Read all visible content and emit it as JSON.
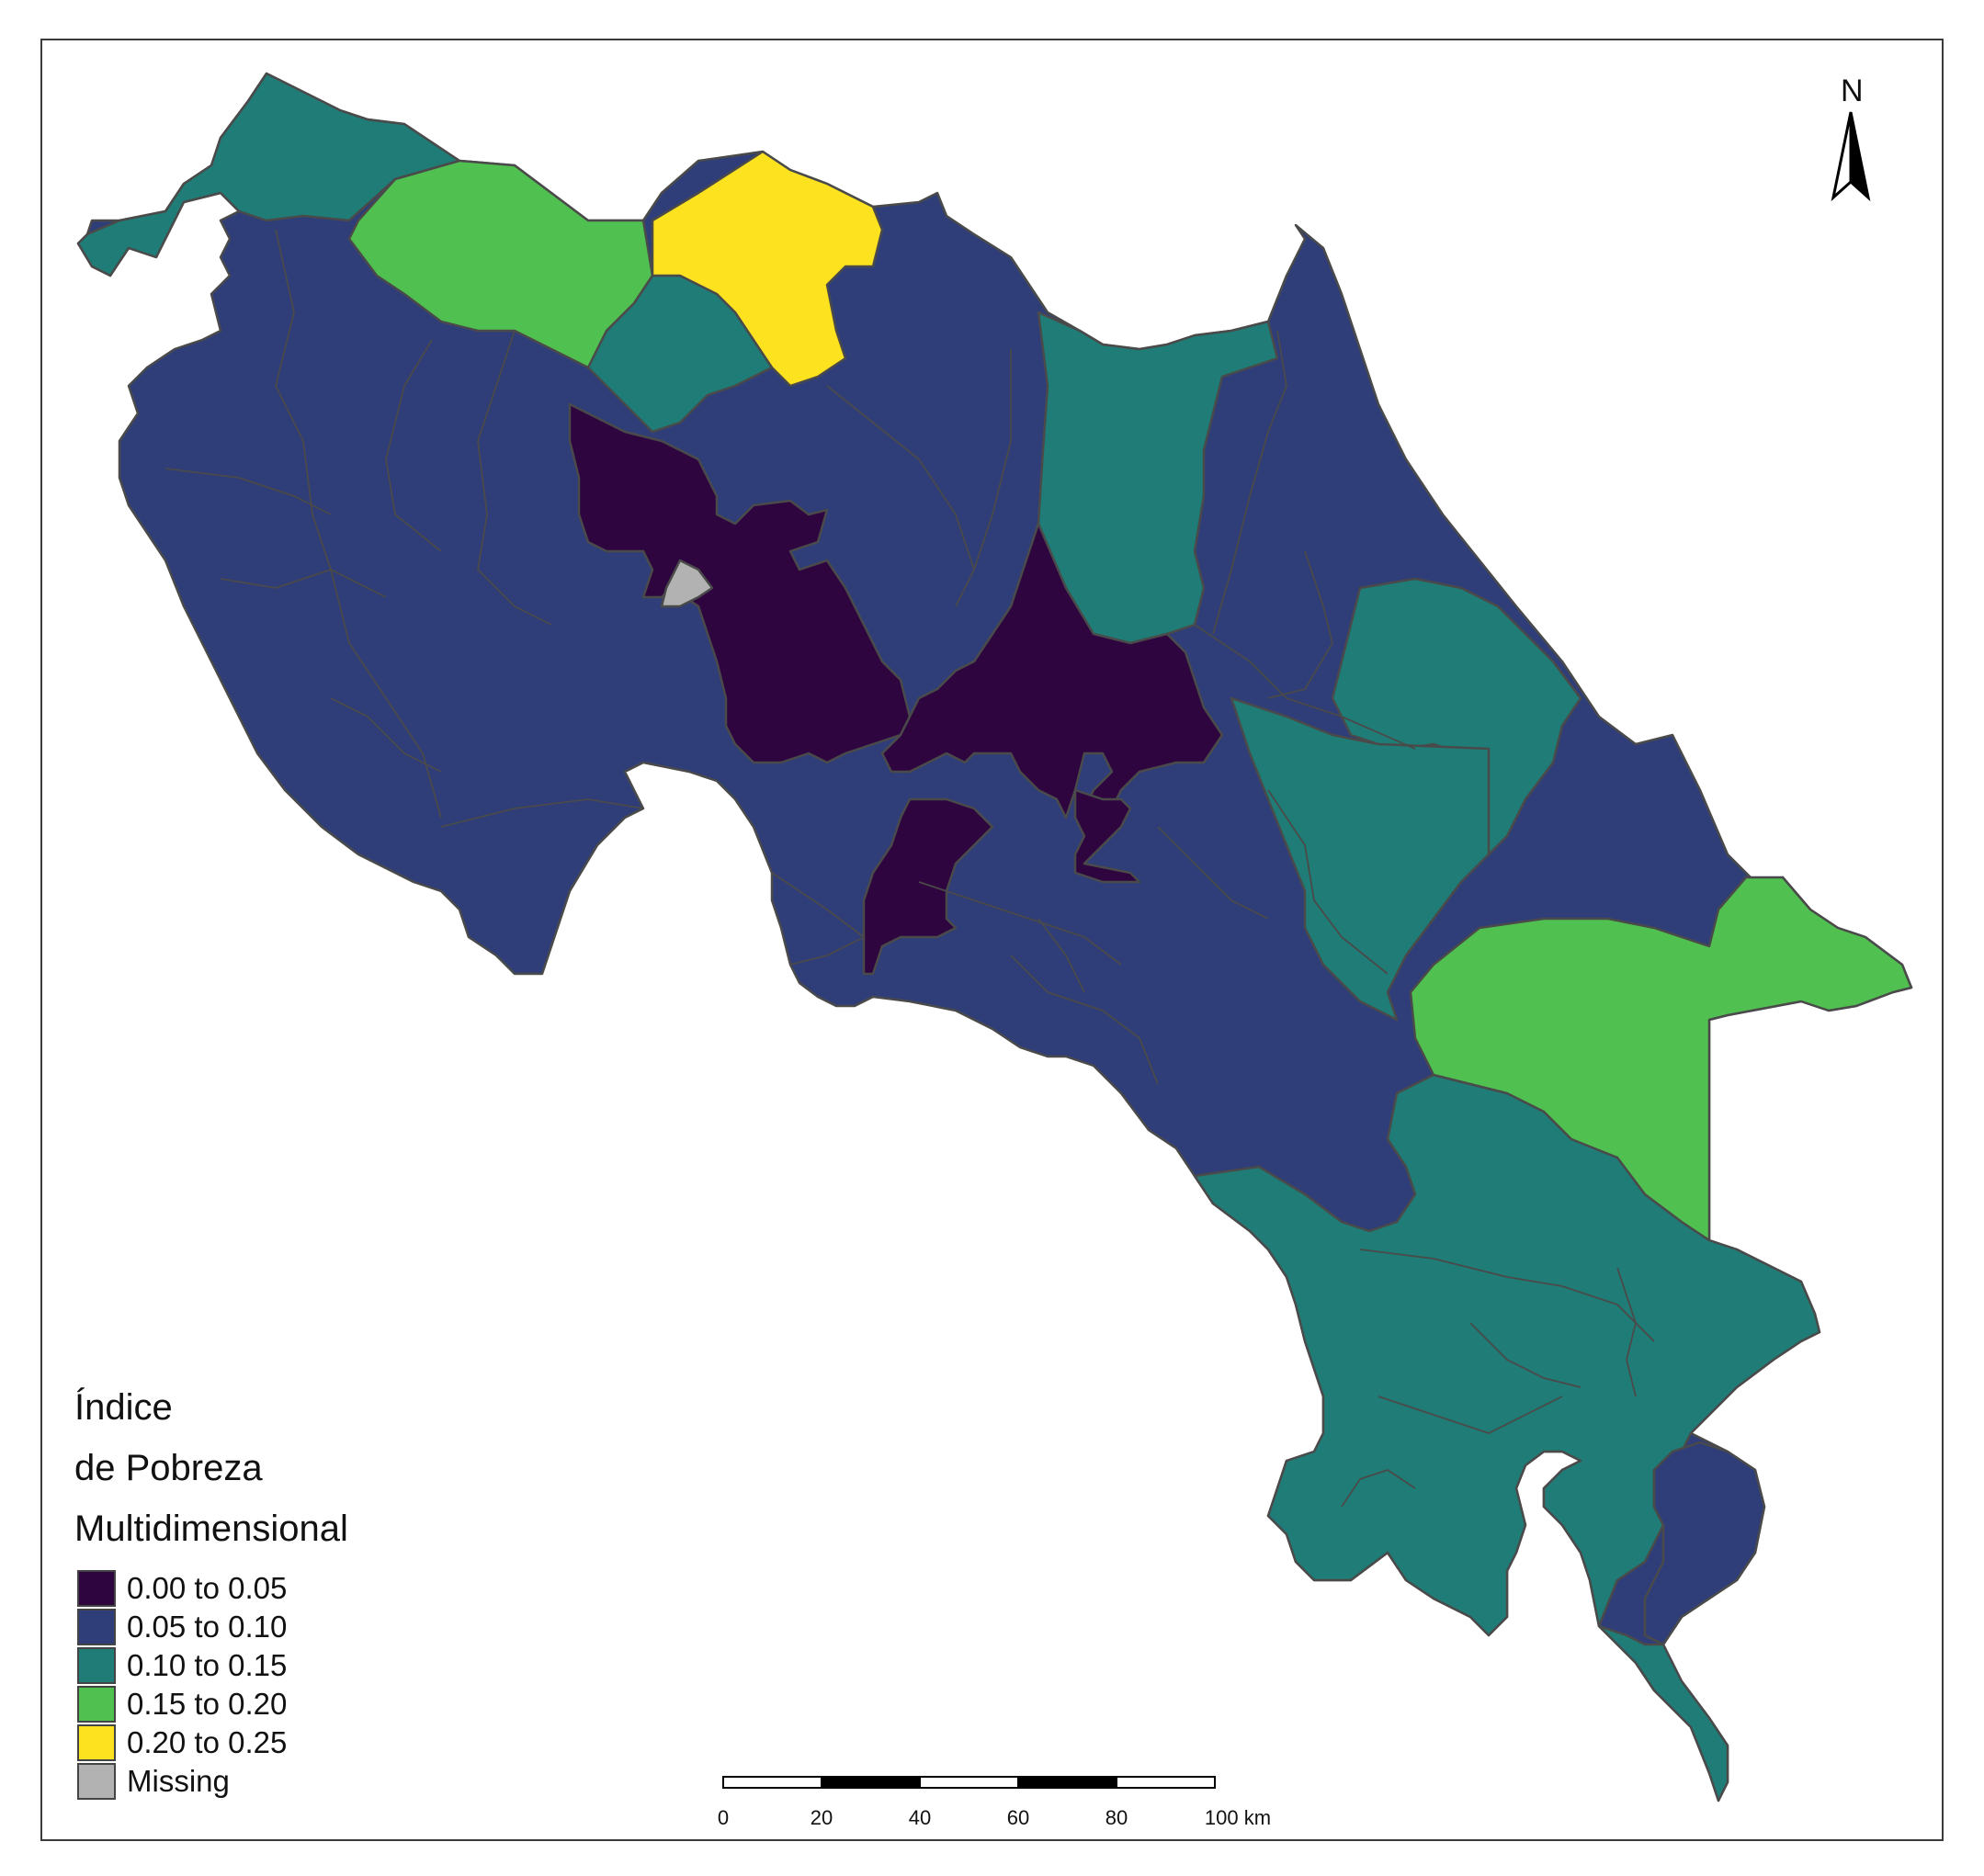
{
  "legend": {
    "title_line1": "Índice",
    "title_line2": "de Pobreza",
    "title_line3": "Multidimensional",
    "items": [
      {
        "label": "0.00 to 0.05",
        "color": "#2f0540"
      },
      {
        "label": "0.05 to 0.10",
        "color": "#2f3e78"
      },
      {
        "label": "0.10 to 0.15",
        "color": "#1f7c76"
      },
      {
        "label": "0.15 to 0.20",
        "color": "#50c050"
      },
      {
        "label": "0.20 to 0.25",
        "color": "#fde31f"
      },
      {
        "label": "Missing",
        "color": "#b2b2b2"
      }
    ]
  },
  "north_arrow": {
    "label": "N"
  },
  "scale_bar": {
    "ticks": [
      "0",
      "20",
      "40",
      "60",
      "80",
      "100 km"
    ]
  },
  "colors": {
    "border": "#4a4a4a",
    "class_0": "#2f0540",
    "class_1": "#2f3e78",
    "class_2": "#1f7c76",
    "class_3": "#50c050",
    "class_4": "#fde31f",
    "missing": "#b2b2b2"
  }
}
